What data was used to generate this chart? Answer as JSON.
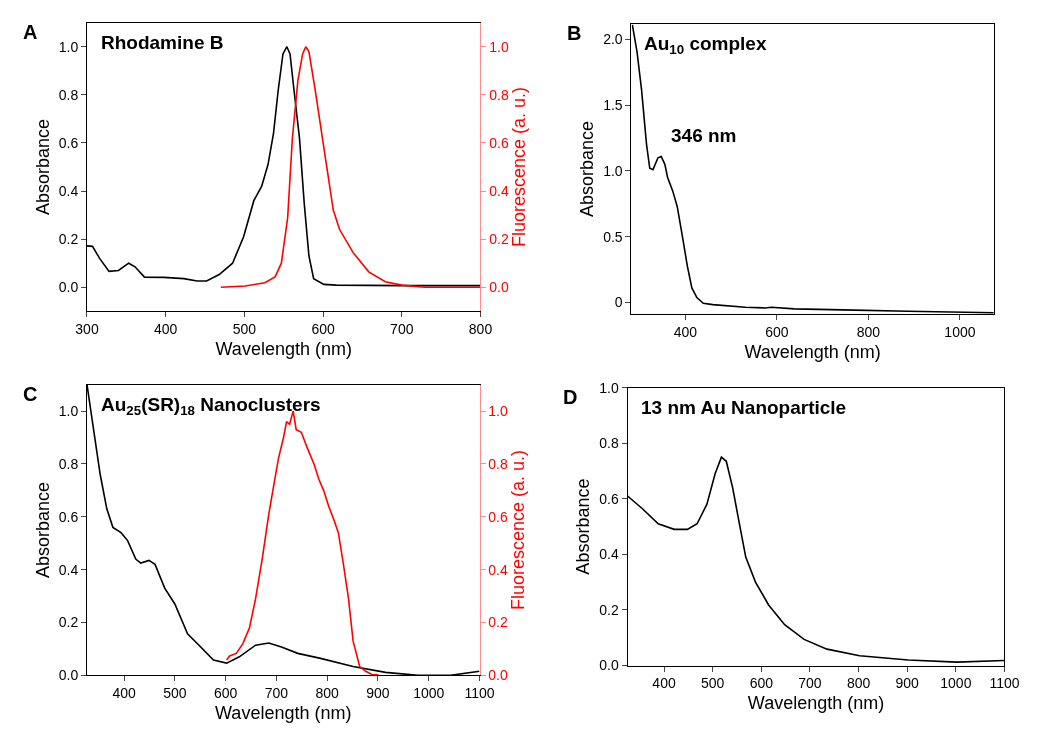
{
  "chart_data": [
    {
      "type": "line",
      "title": "Rhodamine B",
      "xlabel": "Wavelength (nm)",
      "ylabel": "Absorbance",
      "y2label": "Fluorescence (a. u.)",
      "annotations": [
        "A"
      ],
      "xlim": [
        300,
        800
      ],
      "xticks": [
        300,
        400,
        500,
        600,
        700,
        800
      ],
      "ylim": [
        -0.1,
        1.1
      ],
      "yticks": [
        {
          "value": 0,
          "label": "0.0"
        },
        {
          "value": 0.2,
          "label": "0.2"
        },
        {
          "value": 0.4,
          "label": "0.4"
        },
        {
          "value": 0.6,
          "label": "0.6"
        },
        {
          "value": 0.8,
          "label": "0.8"
        },
        {
          "value": 1.0,
          "label": "1.0"
        }
      ],
      "y2lim": [
        -0.1,
        1.1
      ],
      "y2ticks": [
        {
          "value": 0,
          "label": "0.0"
        },
        {
          "value": 0.2,
          "label": "0.2"
        },
        {
          "value": 0.4,
          "label": "0.4"
        },
        {
          "value": 0.6,
          "label": "0.6"
        },
        {
          "value": 0.8,
          "label": "0.8"
        },
        {
          "value": 1.0,
          "label": "1.0"
        }
      ],
      "series": [
        {
          "color": "#000000",
          "x": [
            300,
            307,
            316,
            328,
            340,
            353,
            361,
            373,
            398,
            423,
            440,
            452,
            468,
            485,
            499,
            512,
            522,
            530,
            537,
            543,
            549,
            554,
            558,
            563,
            570,
            576,
            582,
            588,
            601,
            617,
            700,
            800
          ],
          "values": [
            0.172,
            0.17,
            0.12,
            0.066,
            0.07,
            0.1,
            0.085,
            0.042,
            0.041,
            0.036,
            0.026,
            0.026,
            0.053,
            0.1,
            0.21,
            0.36,
            0.42,
            0.51,
            0.64,
            0.82,
            0.97,
            1.0,
            0.97,
            0.82,
            0.62,
            0.35,
            0.13,
            0.036,
            0.012,
            0.009,
            0.007,
            0.007
          ]
        },
        {
          "color": "#ff0000",
          "axis": "y2",
          "x": [
            470,
            501,
            526,
            539,
            547,
            555,
            561,
            568,
            574,
            578,
            582,
            590,
            601,
            613,
            621,
            638,
            658,
            679,
            700,
            729,
            800
          ],
          "values": [
            0.0,
            0.005,
            0.019,
            0.043,
            0.1,
            0.29,
            0.62,
            0.86,
            0.97,
            1.0,
            0.98,
            0.82,
            0.58,
            0.32,
            0.24,
            0.145,
            0.064,
            0.023,
            0.009,
            0.0,
            0.0
          ]
        }
      ]
    },
    {
      "type": "line",
      "title": "Au$_{10}$ complex",
      "xlabel": "Wavelength (nm)",
      "ylabel": "Absorbance",
      "annotations": [
        "B",
        {
          "text": "346 nm",
          "x": 346,
          "y": 1.11
        }
      ],
      "xlim": [
        282,
        1074
      ],
      "xticks": [
        400,
        600,
        800,
        1000
      ],
      "ylim": [
        -0.09,
        2.12
      ],
      "yticks": [
        0,
        0.5,
        {
          "value": 1.0,
          "label": "1.0"
        },
        1.5,
        {
          "value": 2.0,
          "label": "2.0"
        }
      ],
      "series": [
        {
          "color": "#000000",
          "x": [
            284,
            294,
            304,
            315,
            322,
            329,
            340,
            347,
            355,
            361,
            372,
            382,
            393,
            404,
            414,
            425,
            439,
            460,
            531,
            574,
            588,
            638,
            744,
            886,
            1074
          ],
          "values": [
            2.11,
            1.91,
            1.62,
            1.2,
            1.02,
            1.01,
            1.1,
            1.11,
            1.05,
            0.95,
            0.85,
            0.73,
            0.51,
            0.28,
            0.11,
            0.037,
            -0.007,
            -0.017,
            -0.037,
            -0.042,
            -0.037,
            -0.049,
            -0.057,
            -0.067,
            -0.079
          ]
        }
      ]
    },
    {
      "type": "line",
      "title": "Au$_{25}$(SR)$_{18}$ Nanoclusters",
      "xlabel": "Wavelength (nm)",
      "ylabel": "Absorbance",
      "y2label": "Fluorescence (a. u.)",
      "annotations": [
        "C"
      ],
      "xlim": [
        327,
        1100
      ],
      "xticks": [
        400,
        500,
        600,
        700,
        800,
        900,
        1000,
        1100
      ],
      "ylim": [
        0,
        1.1
      ],
      "yticks": [
        {
          "value": 0,
          "label": "0.0"
        },
        {
          "value": 0.2,
          "label": "0.2"
        },
        {
          "value": 0.4,
          "label": "0.4"
        },
        {
          "value": 0.6,
          "label": "0.6"
        },
        {
          "value": 0.8,
          "label": "0.8"
        },
        {
          "value": 1.0,
          "label": "1.0"
        }
      ],
      "y2lim": [
        0,
        1.1
      ],
      "y2ticks": [
        {
          "value": 0,
          "label": "0.0"
        },
        {
          "value": 0.2,
          "label": "0.2"
        },
        {
          "value": 0.4,
          "label": "0.4"
        },
        {
          "value": 0.6,
          "label": "0.6"
        },
        {
          "value": 0.8,
          "label": "0.8"
        },
        {
          "value": 1.0,
          "label": "1.0"
        }
      ],
      "series": [
        {
          "color": "#000000",
          "x": [
            327,
            340,
            353,
            366,
            378,
            394,
            407,
            423,
            433,
            449,
            461,
            480,
            500,
            525,
            551,
            576,
            602,
            627,
            659,
            685,
            710,
            742,
            787,
            851,
            915,
            979,
            1043,
            1100
          ],
          "values": [
            1.1,
            0.93,
            0.76,
            0.63,
            0.56,
            0.54,
            0.51,
            0.44,
            0.425,
            0.435,
            0.42,
            0.33,
            0.27,
            0.157,
            0.107,
            0.058,
            0.046,
            0.07,
            0.114,
            0.122,
            0.107,
            0.083,
            0.064,
            0.033,
            0.011,
            0.0,
            0.0,
            0.015
          ]
        },
        {
          "color": "#ff0000",
          "axis": "y2",
          "x": [
            602,
            608,
            621,
            634,
            647,
            659,
            672,
            685,
            694,
            704,
            714,
            720,
            726,
            733,
            739,
            749,
            761,
            774,
            784,
            793,
            803,
            813,
            822,
            832,
            842,
            851,
            864,
            876,
            889,
            901
          ],
          "values": [
            0.058,
            0.073,
            0.083,
            0.12,
            0.18,
            0.29,
            0.44,
            0.61,
            0.71,
            0.82,
            0.9,
            0.96,
            0.95,
            1.0,
            0.93,
            0.92,
            0.86,
            0.8,
            0.74,
            0.7,
            0.64,
            0.59,
            0.54,
            0.42,
            0.29,
            0.13,
            0.033,
            0.015,
            0.002,
            0.002
          ]
        }
      ]
    },
    {
      "type": "line",
      "title": "13 nm Au Nanoparticle",
      "xlabel": "Wavelength (nm)",
      "ylabel": "Absorbance",
      "annotations": [
        "D"
      ],
      "xlim": [
        325,
        1100
      ],
      "xticks": [
        400,
        500,
        600,
        700,
        800,
        900,
        1000,
        1100
      ],
      "ylim": [
        0,
        1.0
      ],
      "yticks": [
        {
          "value": 0,
          "label": "0.0"
        },
        {
          "value": 0.2,
          "label": "0.2"
        },
        {
          "value": 0.4,
          "label": "0.4"
        },
        {
          "value": 0.6,
          "label": "0.6"
        },
        {
          "value": 0.8,
          "label": "0.8"
        },
        {
          "value": 1.0,
          "label": "1.0"
        }
      ],
      "series": [
        {
          "color": "#000000",
          "x": [
            325,
            355,
            388,
            421,
            448,
            468,
            488,
            505,
            518,
            528,
            541,
            555,
            568,
            588,
            615,
            648,
            688,
            735,
            802,
            902,
            1002,
            1100
          ],
          "values": [
            0.61,
            0.565,
            0.51,
            0.49,
            0.49,
            0.51,
            0.58,
            0.69,
            0.75,
            0.735,
            0.64,
            0.51,
            0.39,
            0.3,
            0.218,
            0.147,
            0.094,
            0.059,
            0.035,
            0.02,
            0.012,
            0.018
          ]
        }
      ]
    }
  ]
}
